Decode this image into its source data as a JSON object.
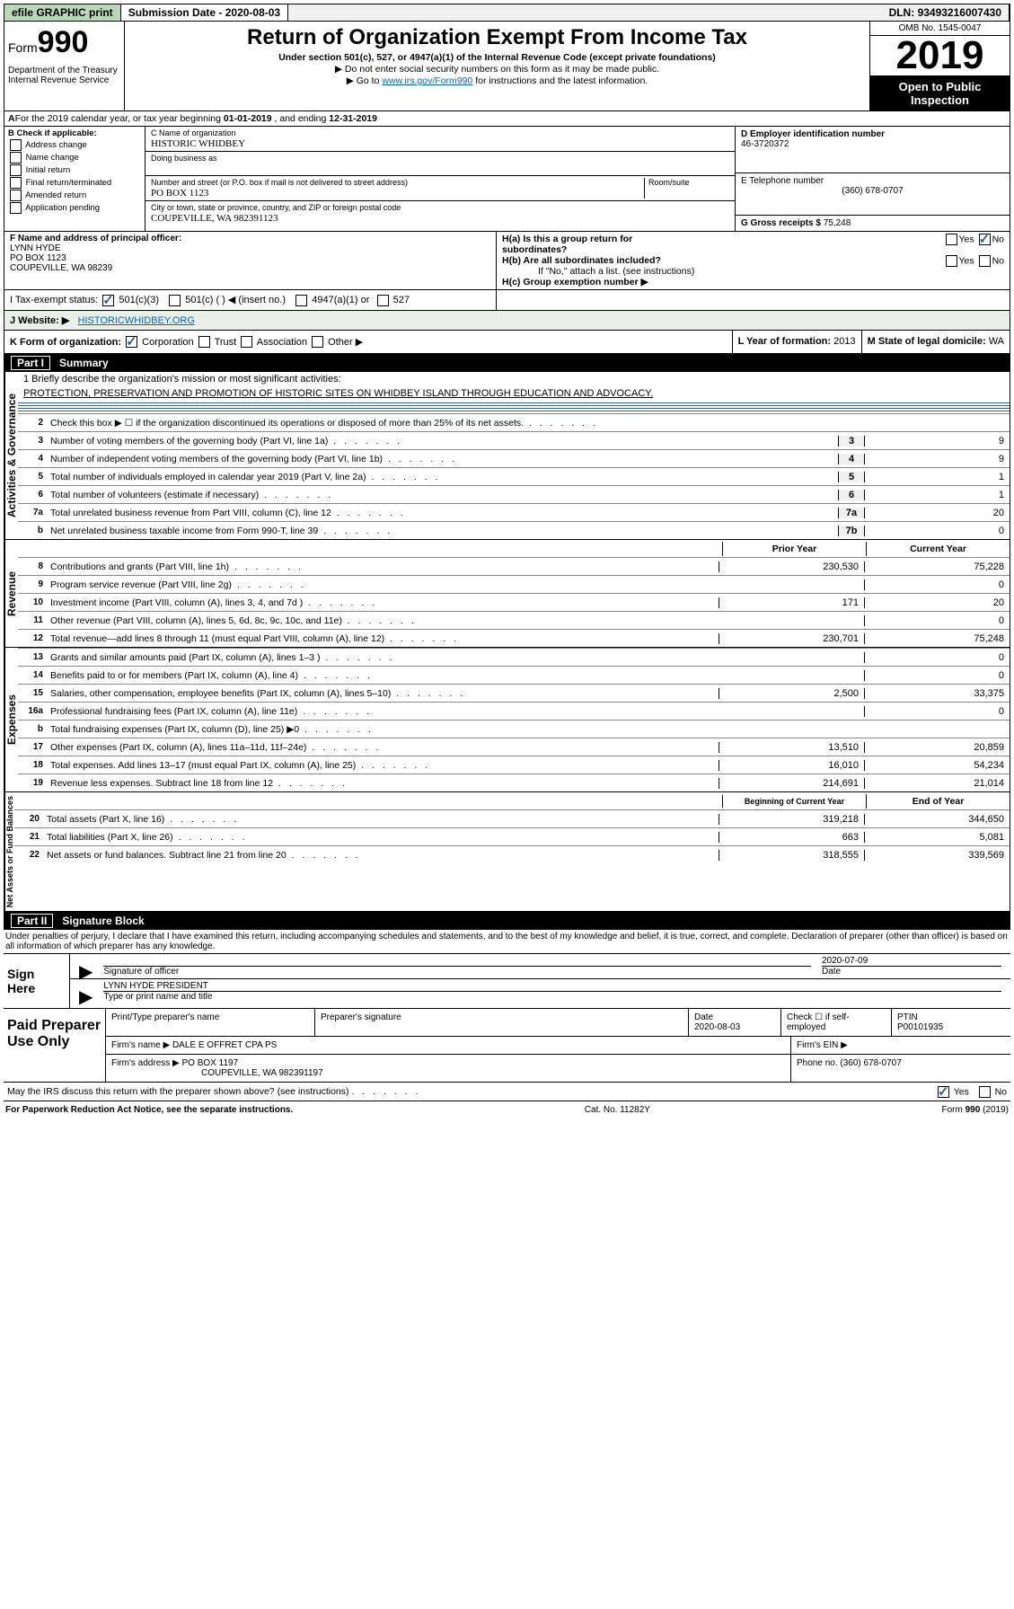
{
  "top": {
    "efile": "efile GRAPHIC print",
    "sub_label": "Submission Date - ",
    "sub_date": "2020-08-03",
    "dln_label": "DLN: ",
    "dln": "93493216007430"
  },
  "header": {
    "form": "Form",
    "num": "990",
    "dept": "Department of the Treasury\nInternal Revenue Service",
    "title": "Return of Organization Exempt From Income Tax",
    "sub1": "Under section 501(c), 527, or 4947(a)(1) of the Internal Revenue Code (except private foundations)",
    "sub2": "▶ Do not enter social security numbers on this form as it may be made public.",
    "sub3_pre": "▶ Go to ",
    "sub3_link": "www.irs.gov/Form990",
    "sub3_post": " for instructions and the latest information.",
    "omb": "OMB No. 1545-0047",
    "year": "2019",
    "open": "Open to Public Inspection"
  },
  "row_a": {
    "text_pre": "For the 2019 calendar year, or tax year beginning ",
    "begin": "01-01-2019",
    "mid": " , and ending ",
    "end": "12-31-2019"
  },
  "b": {
    "header": "B Check if applicable:",
    "items": [
      "Address change",
      "Name change",
      "Initial return",
      "Final return/terminated",
      "Amended return",
      "Application pending"
    ]
  },
  "c": {
    "name_label": "C Name of organization",
    "name": "HISTORIC WHIDBEY",
    "dba_label": "Doing business as",
    "street_label": "Number and street (or P.O. box if mail is not delivered to street address)",
    "room_label": "Room/suite",
    "street": "PO BOX 1123",
    "city_label": "City or town, state or province, country, and ZIP or foreign postal code",
    "city": "COUPEVILLE, WA  982391123"
  },
  "d": {
    "ein_label": "D Employer identification number",
    "ein": "46-3720372",
    "tel_label": "E Telephone number",
    "tel": "(360) 678-0707",
    "gross_label": "G Gross receipts $ ",
    "gross": "75,248"
  },
  "f": {
    "label": "F Name and address of principal officer:",
    "name": "LYNN HYDE",
    "addr1": "PO BOX 1123",
    "addr2": "COUPEVILLE, WA  98239"
  },
  "h": {
    "a": "H(a)  Is this a group return for subordinates?",
    "b": "H(b)  Are all subordinates included?",
    "b_note": "If \"No,\" attach a list. (see instructions)",
    "c": "H(c)  Group exemption number ▶",
    "yes": "Yes",
    "no": "No"
  },
  "i": {
    "label": "I   Tax-exempt status:",
    "o1": "501(c)(3)",
    "o2": "501(c) (  ) ◀ (insert no.)",
    "o3": "4947(a)(1) or",
    "o4": "527"
  },
  "j": {
    "label": "J   Website: ▶",
    "value": "HISTORICWHIDBEY.ORG"
  },
  "k": {
    "label": "K Form of organization:",
    "corp": "Corporation",
    "trust": "Trust",
    "assoc": "Association",
    "other": "Other ▶",
    "l_label": "L Year of formation: ",
    "l_val": "2013",
    "m_label": "M State of legal domicile: ",
    "m_val": "WA"
  },
  "part1": {
    "num": "Part I",
    "title": "Summary"
  },
  "mission": {
    "q": "1  Briefly describe the organization's mission or most significant activities:",
    "text": "PROTECTION, PRESERVATION AND PROMOTION OF HISTORIC SITES ON WHIDBEY ISLAND THROUGH EDUCATION AND ADVOCACY."
  },
  "gov_lines": [
    {
      "n": "2",
      "t": "Check this box ▶ ☐  if the organization discontinued its operations or disposed of more than 25% of its net assets."
    },
    {
      "n": "3",
      "t": "Number of voting members of the governing body (Part VI, line 1a)",
      "box": "3",
      "v": "9"
    },
    {
      "n": "4",
      "t": "Number of independent voting members of the governing body (Part VI, line 1b)",
      "box": "4",
      "v": "9"
    },
    {
      "n": "5",
      "t": "Total number of individuals employed in calendar year 2019 (Part V, line 2a)",
      "box": "5",
      "v": "1"
    },
    {
      "n": "6",
      "t": "Total number of volunteers (estimate if necessary)",
      "box": "6",
      "v": "1"
    },
    {
      "n": "7a",
      "t": "Total unrelated business revenue from Part VIII, column (C), line 12",
      "box": "7a",
      "v": "20"
    },
    {
      "n": "b",
      "t": "Net unrelated business taxable income from Form 990-T, line 39",
      "box": "7b",
      "v": "0"
    }
  ],
  "rev_header": {
    "py": "Prior Year",
    "cy": "Current Year"
  },
  "rev_lines": [
    {
      "n": "8",
      "t": "Contributions and grants (Part VIII, line 1h)",
      "py": "230,530",
      "cy": "75,228"
    },
    {
      "n": "9",
      "t": "Program service revenue (Part VIII, line 2g)",
      "py": "",
      "cy": "0"
    },
    {
      "n": "10",
      "t": "Investment income (Part VIII, column (A), lines 3, 4, and 7d )",
      "py": "171",
      "cy": "20"
    },
    {
      "n": "11",
      "t": "Other revenue (Part VIII, column (A), lines 5, 6d, 8c, 9c, 10c, and 11e)",
      "py": "",
      "cy": "0"
    },
    {
      "n": "12",
      "t": "Total revenue—add lines 8 through 11 (must equal Part VIII, column (A), line 12)",
      "py": "230,701",
      "cy": "75,248"
    }
  ],
  "exp_lines": [
    {
      "n": "13",
      "t": "Grants and similar amounts paid (Part IX, column (A), lines 1–3 )",
      "py": "",
      "cy": "0"
    },
    {
      "n": "14",
      "t": "Benefits paid to or for members (Part IX, column (A), line 4)",
      "py": "",
      "cy": "0"
    },
    {
      "n": "15",
      "t": "Salaries, other compensation, employee benefits (Part IX, column (A), lines 5–10)",
      "py": "2,500",
      "cy": "33,375"
    },
    {
      "n": "16a",
      "t": "Professional fundraising fees (Part IX, column (A), line 11e)",
      "py": "",
      "cy": "0"
    },
    {
      "n": "b",
      "t": "Total fundraising expenses (Part IX, column (D), line 25) ▶0",
      "py": "shade",
      "cy": "shade"
    },
    {
      "n": "17",
      "t": "Other expenses (Part IX, column (A), lines 11a–11d, 11f–24e)",
      "py": "13,510",
      "cy": "20,859"
    },
    {
      "n": "18",
      "t": "Total expenses. Add lines 13–17 (must equal Part IX, column (A), line 25)",
      "py": "16,010",
      "cy": "54,234"
    },
    {
      "n": "19",
      "t": "Revenue less expenses. Subtract line 18 from line 12",
      "py": "214,691",
      "cy": "21,014"
    }
  ],
  "net_header": {
    "py": "Beginning of Current Year",
    "cy": "End of Year"
  },
  "net_lines": [
    {
      "n": "20",
      "t": "Total assets (Part X, line 16)",
      "py": "319,218",
      "cy": "344,650"
    },
    {
      "n": "21",
      "t": "Total liabilities (Part X, line 26)",
      "py": "663",
      "cy": "5,081"
    },
    {
      "n": "22",
      "t": "Net assets or fund balances. Subtract line 21 from line 20",
      "py": "318,555",
      "cy": "339,569"
    }
  ],
  "vtabs": {
    "gov": "Activities & Governance",
    "rev": "Revenue",
    "exp": "Expenses",
    "net": "Net Assets or Fund Balances"
  },
  "part2": {
    "num": "Part II",
    "title": "Signature Block"
  },
  "perjury": "Under penalties of perjury, I declare that I have examined this return, including accompanying schedules and statements, and to the best of my knowledge and belief, it is true, correct, and complete. Declaration of preparer (other than officer) is based on all information of which preparer has any knowledge.",
  "sign": {
    "here": "Sign Here",
    "sig_officer": "Signature of officer",
    "date": "2020-07-09",
    "date_label": "Date",
    "name": "LYNN HYDE PRESIDENT",
    "name_label": "Type or print name and title"
  },
  "prep": {
    "label": "Paid Preparer Use Only",
    "h1": "Print/Type preparer's name",
    "h2": "Preparer's signature",
    "h3": "Date",
    "h4": "Check ☐ if self-employed",
    "h5": "PTIN",
    "date": "2020-08-03",
    "ptin": "P00101935",
    "firm_name_l": "Firm's name    ▶",
    "firm_name": "DALE E OFFRET CPA PS",
    "firm_ein": "Firm's EIN ▶",
    "firm_addr_l": "Firm's address ▶",
    "firm_addr": "PO BOX 1197",
    "firm_phone_l": "Phone no. ",
    "firm_phone": "(360) 678-0707",
    "firm_city": "COUPEVILLE, WA  982391197"
  },
  "discuss": "May the IRS discuss this return with the preparer shown above? (see instructions)",
  "footer": {
    "l": "For Paperwork Reduction Act Notice, see the separate instructions.",
    "m": "Cat. No. 11282Y",
    "r": "Form 990 (2019)"
  }
}
